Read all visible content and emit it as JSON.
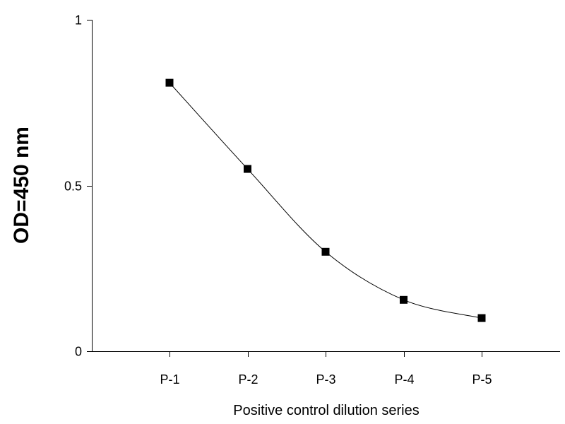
{
  "chart_data": {
    "type": "line",
    "categories": [
      "P-1",
      "P-2",
      "P-3",
      "P-4",
      "P-5"
    ],
    "values": [
      0.81,
      0.55,
      0.3,
      0.155,
      0.1
    ],
    "xlabel": "Positive control dilution series",
    "ylabel": "OD=450 nm",
    "ylim": [
      0,
      1
    ],
    "yticks": [
      "0",
      "0.5",
      "1"
    ],
    "grid": false,
    "legend": "none",
    "line_style": "smooth",
    "marker": "square",
    "colors": {
      "series": "#000000",
      "axis": "#000000",
      "background": "#ffffff"
    }
  }
}
